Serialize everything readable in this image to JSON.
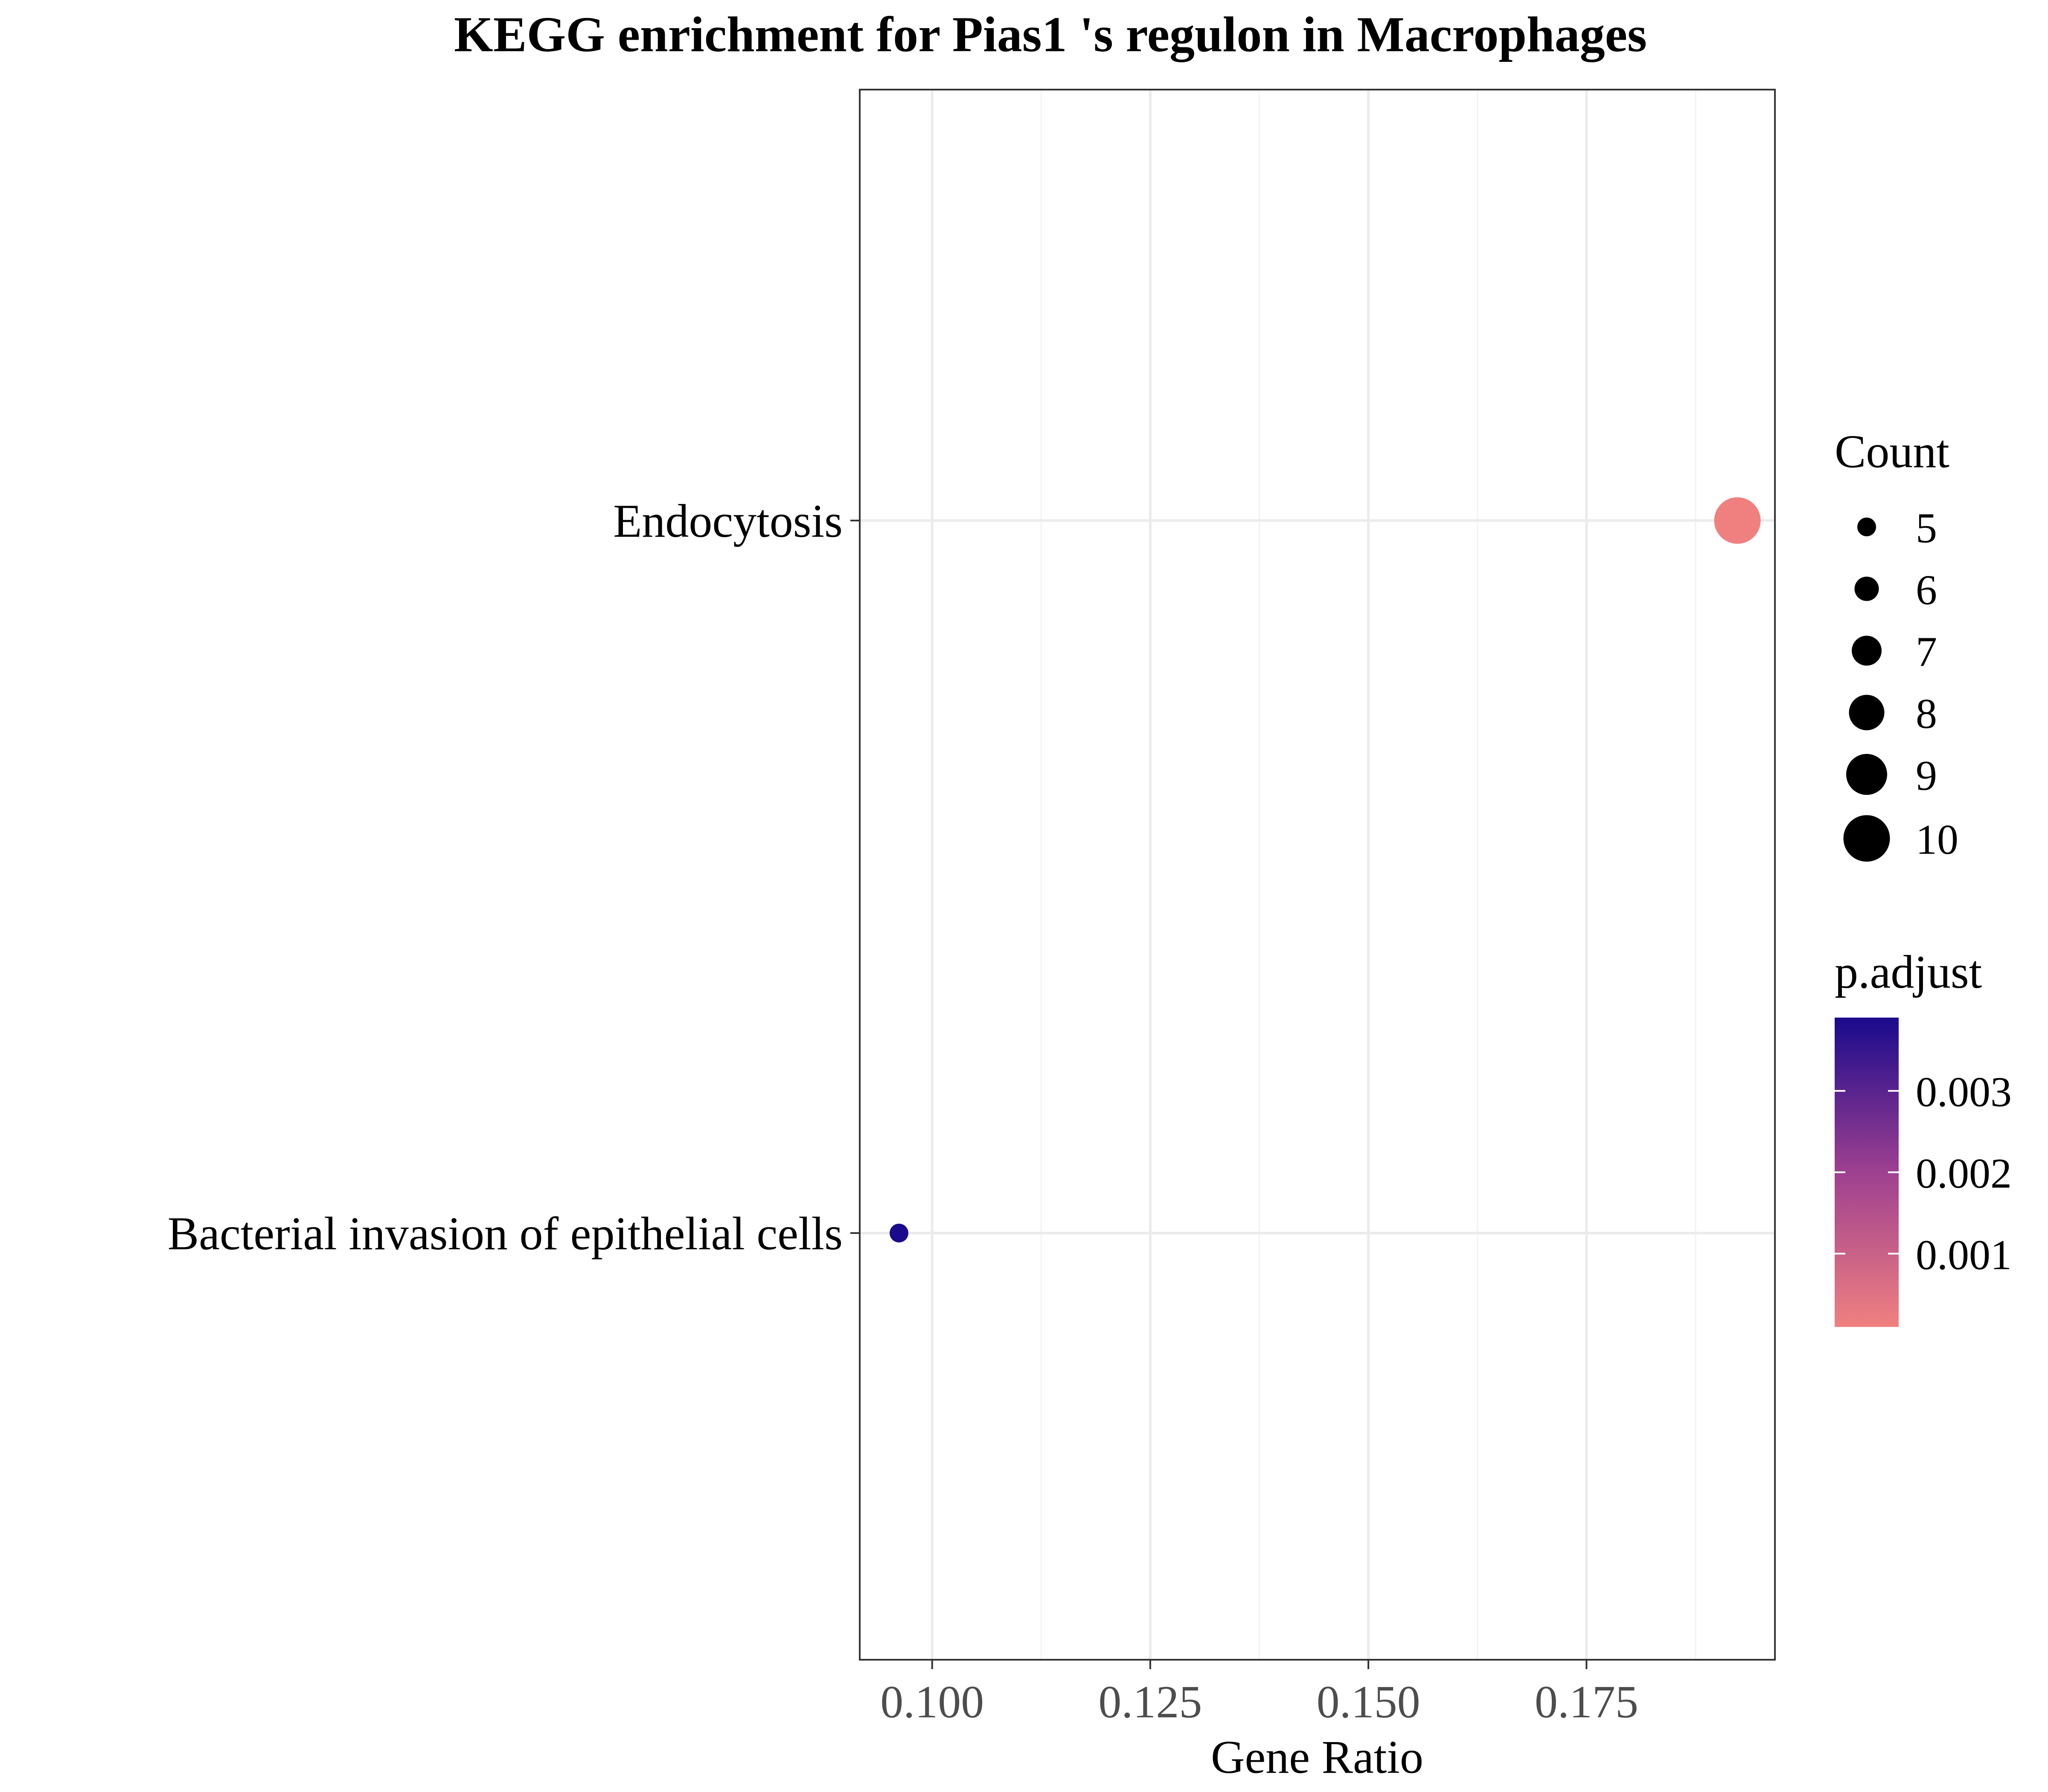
{
  "chart_data": {
    "type": "scatter",
    "title": "KEGG enrichment for Pias1 's regulon in Macrophages",
    "xlabel": "Gene Ratio",
    "ylabel": "",
    "xlim": [
      0.0917,
      0.1966
    ],
    "x_ticks": [
      0.1,
      0.125,
      0.15,
      0.175
    ],
    "x_tick_labels": [
      "0.100",
      "0.125",
      "0.150",
      "0.175"
    ],
    "categories": [
      "Endocytosis",
      "Bacterial invasion of epithelial cells"
    ],
    "grid": true,
    "legend_position": "right",
    "points": [
      {
        "term": "Endocytosis",
        "gene_ratio": 0.1923,
        "count": 10,
        "p_adjust": 0.0001,
        "color": "#F08080"
      },
      {
        "term": "Bacterial invasion of epithelial cells",
        "gene_ratio": 0.0962,
        "count": 5,
        "p_adjust": 0.0039,
        "color": "#1A0A8C"
      }
    ],
    "size_legend": {
      "title": "Count",
      "values": [
        5,
        6,
        7,
        8,
        9,
        10
      ]
    },
    "color_legend": {
      "title": "p.adjust",
      "range": [
        0.0001,
        0.0039
      ],
      "ticks": [
        0.003,
        0.002,
        0.001
      ],
      "tick_labels": [
        "0.003",
        "0.002",
        "0.001"
      ],
      "low_color": "#F08080",
      "high_color": "#1A0A8C"
    }
  }
}
